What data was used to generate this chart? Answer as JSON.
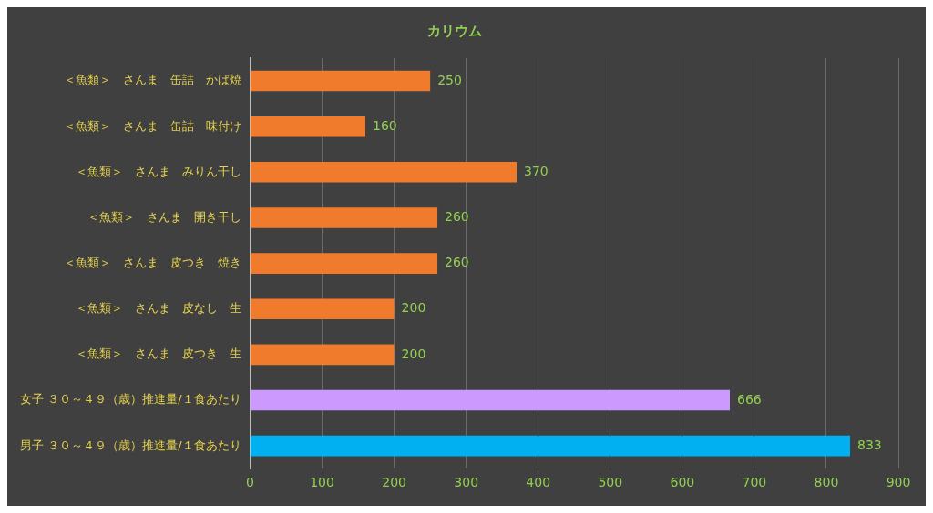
{
  "chart_data": {
    "type": "bar",
    "orientation": "horizontal",
    "title": "カリウム",
    "categories": [
      "＜魚類＞　さんま　缶詰　かば焼",
      "＜魚類＞　さんま　缶詰　味付け",
      "＜魚類＞　さんま　みりん干し",
      "＜魚類＞　さんま　開き干し",
      "＜魚類＞　さんま　皮つき　焼き",
      "＜魚類＞　さんま　皮なし　生",
      "＜魚類＞　さんま　皮つき　生",
      "女子 ３０～４９（歳）推進量/１食あたり",
      "男子 ３０～４９（歳）推進量/１食あたり"
    ],
    "values": [
      250,
      160,
      370,
      260,
      260,
      200,
      200,
      666,
      833
    ],
    "colors": [
      "#f07b2c",
      "#f07b2c",
      "#f07b2c",
      "#f07b2c",
      "#f07b2c",
      "#f07b2c",
      "#f07b2c",
      "#cc99ff",
      "#00b0f0"
    ],
    "xlim": [
      0,
      900
    ],
    "xticks": [
      0,
      100,
      200,
      300,
      400,
      500,
      600,
      700,
      800,
      900
    ],
    "grid": "x",
    "data_labels": true,
    "legend": false
  }
}
